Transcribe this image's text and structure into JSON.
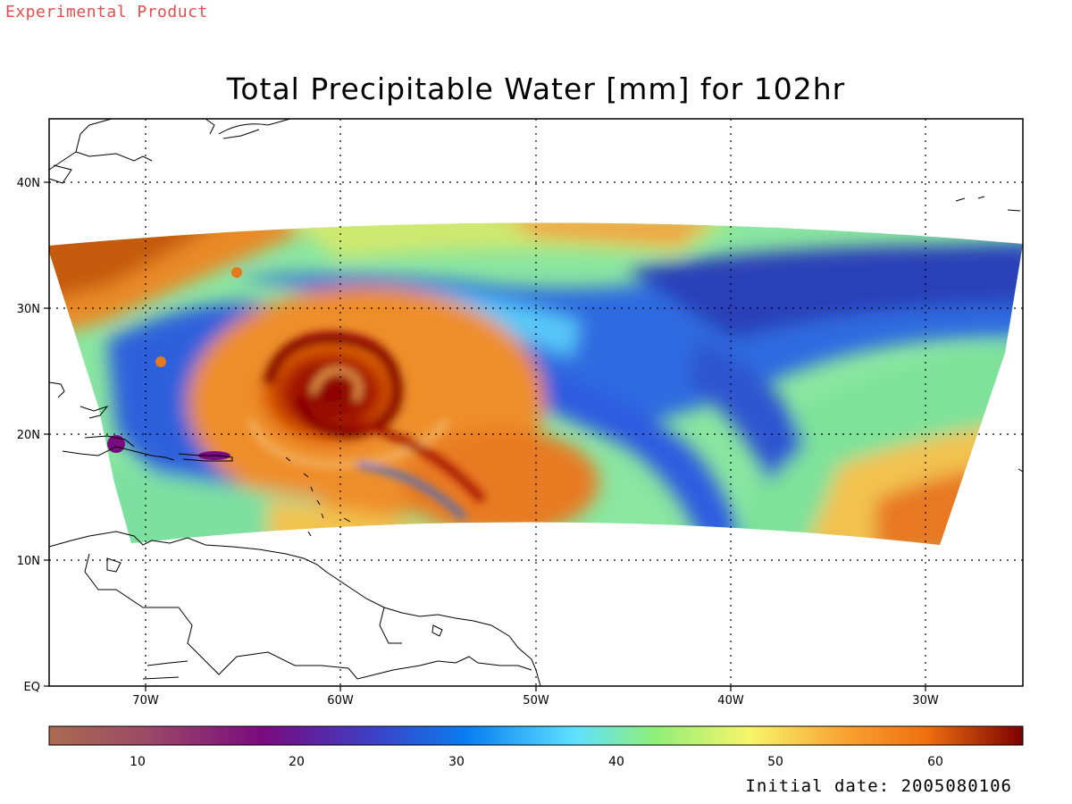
{
  "header": {
    "product_tag": "Experimental Product",
    "title": "Total Precipitable Water [mm] for 102hr"
  },
  "map": {
    "lat_ticks": [
      "EQ",
      "10N",
      "20N",
      "30N",
      "40N"
    ],
    "lon_ticks": [
      "70W",
      "60W",
      "50W",
      "40W",
      "30W"
    ]
  },
  "colorbar": {
    "ticks": [
      "10",
      "20",
      "30",
      "40",
      "50",
      "60"
    ],
    "range": [
      5,
      66
    ],
    "colors": [
      "#a96b50",
      "#9a4a66",
      "#7a0a7f",
      "#3d3fc4",
      "#0a7ef0",
      "#5fe0ff",
      "#8eef7a",
      "#f8f56a",
      "#f8a030",
      "#f07010",
      "#7a0000"
    ]
  },
  "footer": {
    "initial_date": "Initial date: 2005080106"
  }
}
